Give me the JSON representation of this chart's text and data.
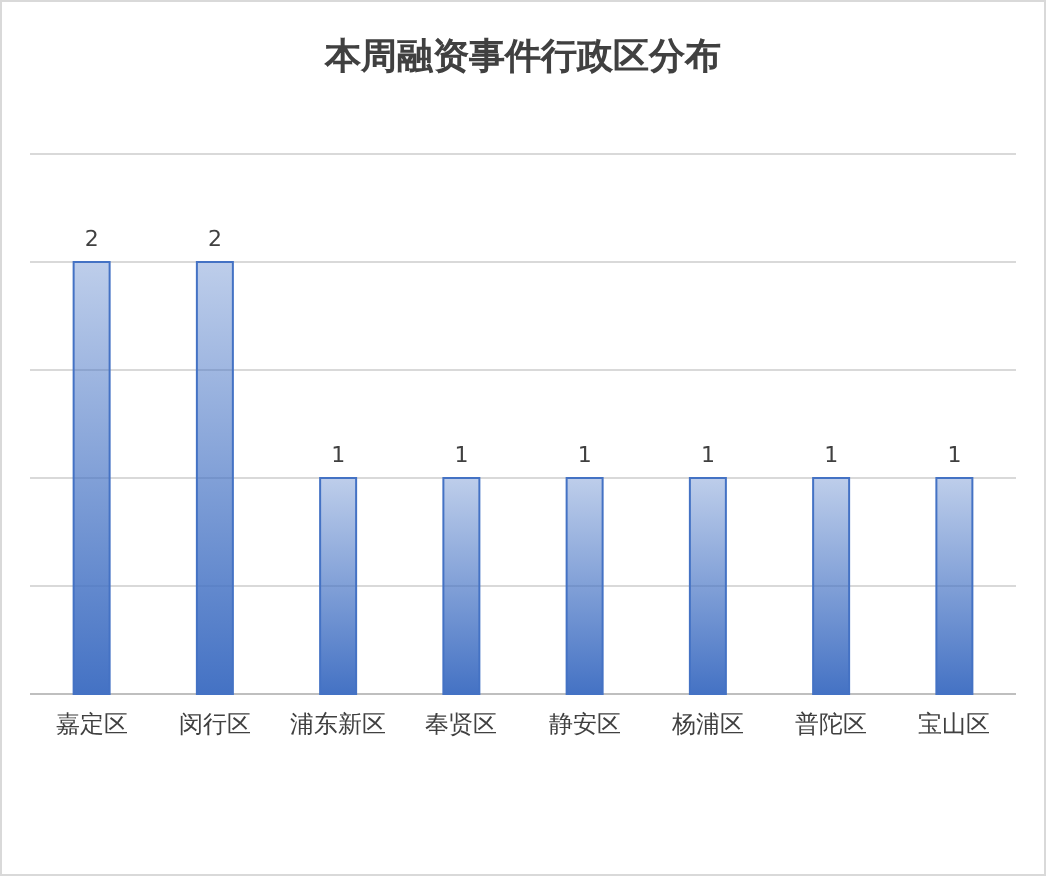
{
  "chart_data": {
    "type": "bar",
    "title": "本周融资事件行政区分布",
    "categories": [
      "嘉定区",
      "闵行区",
      "浦东新区",
      "奉贤区",
      "静安区",
      "杨浦区",
      "普陀区",
      "宝山区"
    ],
    "values": [
      2,
      2,
      1,
      1,
      1,
      1,
      1,
      1
    ],
    "color": "#4472c4",
    "data_labels": true,
    "ylim": [
      0,
      2.5
    ],
    "yticks": [
      {
        "value": 0,
        "label": null
      },
      {
        "value": 0.5,
        "label": null
      },
      {
        "value": 1,
        "label": null
      },
      {
        "value": 1.5,
        "label": null
      },
      {
        "value": 2,
        "label": null
      },
      {
        "value": 2.5,
        "label": null
      }
    ],
    "grid": "y",
    "tick_labels": "x"
  }
}
